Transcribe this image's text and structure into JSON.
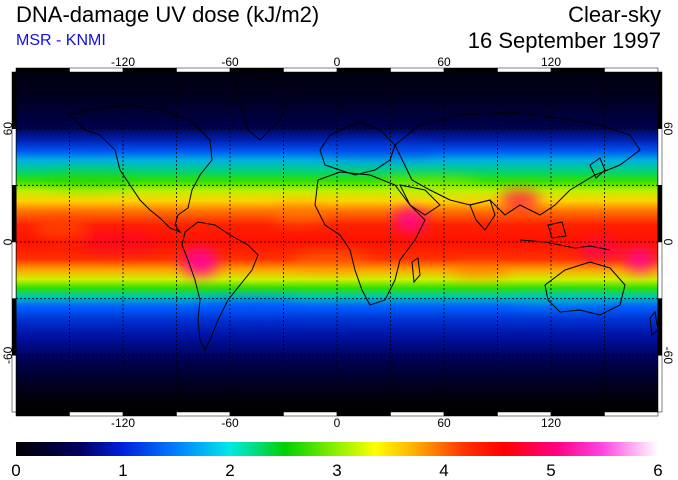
{
  "header": {
    "title": "DNA-damage UV dose (kJ/m2)",
    "subtitle": "MSR - KNMI",
    "condition": "Clear-sky",
    "date": "16 September 1997"
  },
  "map": {
    "lon_ticks": [
      "-120",
      "-60",
      "0",
      "60",
      "120"
    ],
    "lat_ticks": [
      "60",
      "0",
      "-60"
    ],
    "lat_ticks_right": [
      "60",
      "0",
      "-60"
    ],
    "grid": "dashed"
  },
  "colorbar": {
    "labels": [
      "0",
      "1",
      "2",
      "3",
      "4",
      "5",
      "6"
    ],
    "colors": [
      "#000000",
      "#0010b0",
      "#0060ff",
      "#00e0e0",
      "#00d000",
      "#b0f000",
      "#ffff00",
      "#ffb000",
      "#ff4000",
      "#ff0000",
      "#ff0060",
      "#ff00c0",
      "#ff80f0",
      "#ffffff"
    ]
  }
}
